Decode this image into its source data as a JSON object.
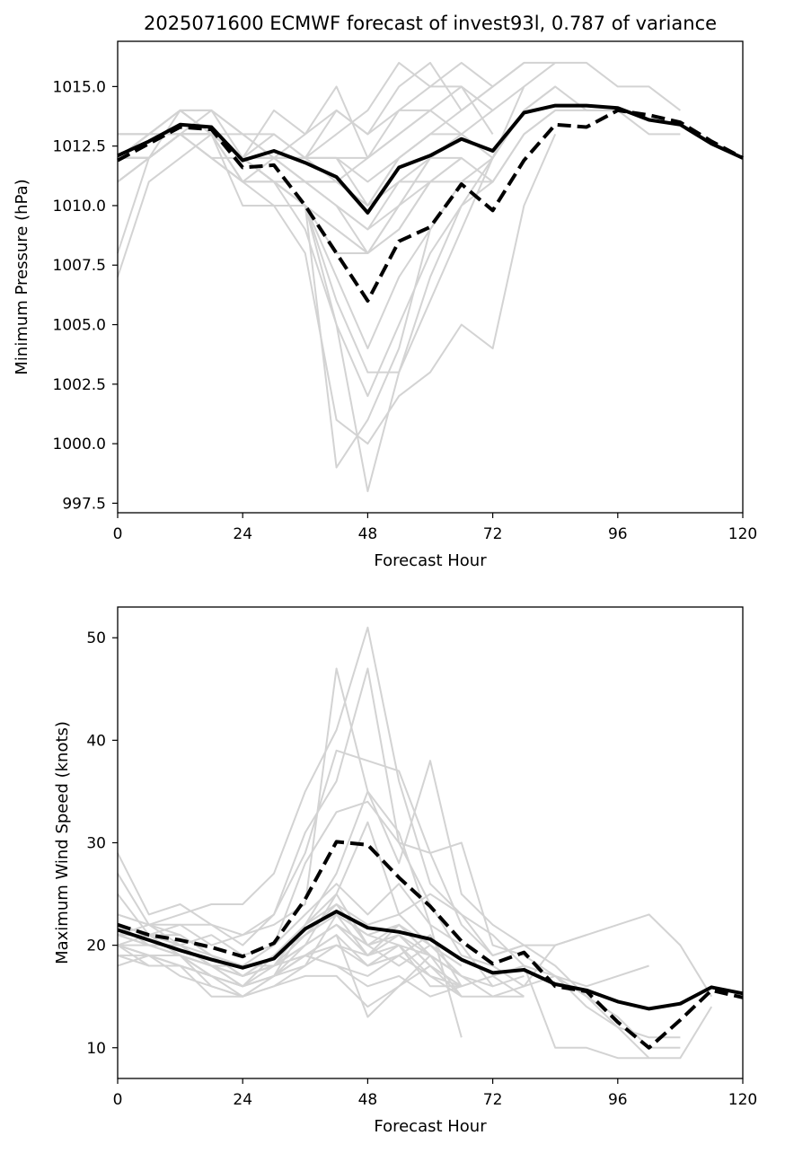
{
  "figure": {
    "title": "2025071600 ECMWF forecast of invest93l, 0.787 of variance"
  },
  "chart_data": [
    {
      "type": "line",
      "id": "pressure",
      "title": "2025071600 ECMWF forecast of invest93l, 0.787 of variance",
      "xlabel": "Forecast Hour",
      "ylabel": "Minimum Pressure (hPa)",
      "xlim": [
        0,
        120
      ],
      "ylim": [
        997.1,
        1016.9
      ],
      "xticks": [
        0,
        24,
        48,
        72,
        96,
        120
      ],
      "xtick_labels": [
        "0",
        "24",
        "48",
        "72",
        "96",
        "120"
      ],
      "yticks": [
        997.5,
        1000.0,
        1002.5,
        1005.0,
        1007.5,
        1010.0,
        1012.5,
        1015.0
      ],
      "ytick_labels": [
        "997.5",
        "1000.0",
        "1002.5",
        "1005.0",
        "1007.5",
        "1010.0",
        "1012.5",
        "1015.0"
      ],
      "grid": false,
      "x": [
        0,
        6,
        12,
        18,
        24,
        30,
        36,
        42,
        48,
        54,
        60,
        66,
        72,
        78,
        84,
        90,
        96,
        102,
        108,
        114,
        120
      ],
      "series": [
        {
          "role": "mean",
          "style": "solid",
          "color": "#000000",
          "values": [
            1012.1,
            1012.7,
            1013.4,
            1013.3,
            1011.9,
            1012.3,
            1011.8,
            1011.2,
            1009.7,
            1011.6,
            1012.1,
            1012.8,
            1012.3,
            1013.9,
            1014.2,
            1014.2,
            1014.1,
            1013.6,
            1013.4,
            1012.6,
            1012.0
          ]
        },
        {
          "role": "highlight",
          "style": "dashed",
          "color": "#000000",
          "values": [
            1011.9,
            1012.6,
            1013.3,
            1013.2,
            1011.6,
            1011.7,
            1010.0,
            1008.0,
            1006.0,
            1008.5,
            1009.1,
            1010.9,
            1009.8,
            1011.9,
            1013.4,
            1013.3,
            1014.0,
            1013.8,
            1013.5,
            1012.7,
            1012.0
          ]
        }
      ],
      "members": [
        [
          1013,
          1013,
          1014,
          1014,
          1013,
          1013,
          1012,
          1012,
          1010,
          1012,
          1013,
          1014,
          1015,
          1016,
          1016,
          1016,
          1015,
          1015,
          1014
        ],
        [
          1012,
          1013,
          1014,
          1013,
          1012,
          1012,
          1011,
          1010,
          1008,
          1010,
          1012,
          1013,
          1012,
          1014,
          1015,
          1014,
          1014,
          1013,
          1013
        ],
        [
          1011,
          1012,
          1013,
          1013,
          1012,
          1011,
          1010,
          1007,
          1004,
          1007,
          1009,
          1011,
          1011,
          1013,
          1014,
          1014,
          1014
        ],
        [
          1012,
          1013,
          1013,
          1014,
          1012,
          1011,
          1009,
          1005,
          1002,
          1005,
          1008,
          1010,
          1011,
          1013,
          1014
        ],
        [
          1008,
          1012,
          1013,
          1013,
          1011,
          1011,
          1010,
          1005,
          998,
          1003,
          1007,
          1010,
          1012,
          1014,
          1015
        ],
        [
          1007,
          1011,
          1012,
          1013,
          1010,
          1010,
          1008,
          1001,
          1000,
          1002,
          1003,
          1005,
          1004,
          1010,
          1013
        ],
        [
          1012,
          1013,
          1014,
          1013,
          1012,
          1013,
          1012,
          1011,
          1012,
          1013,
          1014,
          1015,
          1014,
          1015,
          1016
        ],
        [
          1013,
          1013,
          1014,
          1014,
          1013,
          1012,
          1012,
          1013,
          1014,
          1016,
          1015,
          1016,
          1015,
          1016
        ],
        [
          1012,
          1012,
          1013,
          1013,
          1011,
          1011,
          1010,
          1006,
          1003,
          1003,
          1006,
          1009,
          1012,
          1015
        ],
        [
          1011,
          1012,
          1013,
          1012,
          1011,
          1012,
          1012,
          1014,
          1013,
          1015,
          1016,
          1014,
          1015
        ],
        [
          1012,
          1012,
          1013,
          1012,
          1012,
          1014,
          1013,
          1015,
          1012,
          1014,
          1015,
          1015,
          1013
        ],
        [
          1012,
          1012,
          1013,
          1013,
          1012,
          1011,
          1010,
          999,
          1001,
          1004,
          1009,
          1011,
          1012
        ],
        [
          1012,
          1013,
          1013,
          1013,
          1013,
          1012,
          1013,
          1014,
          1013,
          1014,
          1014,
          1013,
          1014
        ],
        [
          1011,
          1012,
          1014,
          1013,
          1012,
          1011,
          1010,
          1009,
          1008,
          1009,
          1011,
          1012,
          1011
        ],
        [
          1012,
          1013,
          1013,
          1013,
          1012,
          1012,
          1011,
          1010,
          1009,
          1010,
          1012,
          1012
        ],
        [
          1012,
          1012,
          1013,
          1013,
          1011,
          1011,
          1010,
          1008,
          1008,
          1009,
          1011,
          1012
        ],
        [
          1013,
          1013,
          1013,
          1012,
          1011,
          1010,
          1010,
          1009,
          1008,
          1010,
          1011,
          1011
        ],
        [
          1012,
          1012,
          1013,
          1013,
          1012,
          1012,
          1012,
          1012,
          1011,
          1012,
          1013,
          1013
        ],
        [
          1012,
          1012,
          1013,
          1012,
          1011,
          1011,
          1011,
          1010,
          1009,
          1011,
          1011
        ],
        [
          1013,
          1013,
          1013,
          1013,
          1012,
          1012,
          1012,
          1012,
          1012,
          1013,
          1014
        ],
        [
          1012,
          1012,
          1013,
          1013,
          1012,
          1011,
          1011,
          1011,
          1010,
          1011,
          1012
        ],
        [
          1012,
          1012,
          1013,
          1013,
          1012,
          1012,
          1011,
          1011,
          1010,
          1012,
          1013
        ]
      ]
    },
    {
      "type": "line",
      "id": "wind",
      "title": "",
      "xlabel": "Forecast Hour",
      "ylabel": "Maximum Wind Speed (knots)",
      "xlim": [
        0,
        120
      ],
      "ylim": [
        7,
        53
      ],
      "xticks": [
        0,
        24,
        48,
        72,
        96,
        120
      ],
      "xtick_labels": [
        "0",
        "24",
        "48",
        "72",
        "96",
        "120"
      ],
      "yticks": [
        10,
        20,
        30,
        40,
        50
      ],
      "ytick_labels": [
        "10",
        "20",
        "30",
        "40",
        "50"
      ],
      "grid": false,
      "x": [
        0,
        6,
        12,
        18,
        24,
        30,
        36,
        42,
        48,
        54,
        60,
        66,
        72,
        78,
        84,
        90,
        96,
        102,
        108,
        114,
        120
      ],
      "series": [
        {
          "role": "mean",
          "style": "solid",
          "color": "#000000",
          "values": [
            21.5,
            20.5,
            19.5,
            18.6,
            17.8,
            18.7,
            21.6,
            23.3,
            21.7,
            21.3,
            20.6,
            18.6,
            17.3,
            17.6,
            16.2,
            15.6,
            14.5,
            13.8,
            14.3,
            15.9,
            15.3
          ]
        },
        {
          "role": "highlight",
          "style": "dashed",
          "color": "#000000",
          "values": [
            22.0,
            21.0,
            20.5,
            19.8,
            18.9,
            20.2,
            24.5,
            30.1,
            29.8,
            26.6,
            23.8,
            20.4,
            18.2,
            19.3,
            16.0,
            15.5,
            12.5,
            10.0,
            12.7,
            15.6,
            14.9
          ]
        }
      ],
      "members": [
        [
          29,
          23,
          24,
          22,
          21,
          22,
          24,
          47,
          35,
          31,
          22,
          20,
          16,
          17
        ],
        [
          27,
          22,
          23,
          24,
          24,
          27,
          35,
          41,
          51,
          36,
          26,
          23,
          19,
          20
        ],
        [
          25,
          21,
          22,
          22,
          20,
          23,
          31,
          36,
          47,
          30,
          24,
          19,
          18,
          16,
          20,
          21
        ],
        [
          23,
          22,
          22,
          20,
          21,
          23,
          29,
          39,
          38,
          37,
          29,
          22,
          19,
          20,
          20,
          21,
          22,
          23,
          20,
          15
        ],
        [
          22,
          20,
          20,
          21,
          19,
          20,
          28,
          33,
          34,
          30,
          29,
          30,
          20,
          19,
          17,
          16,
          17,
          18
        ],
        [
          21,
          21,
          21,
          19,
          17,
          18,
          22,
          27,
          35,
          28,
          38,
          25,
          22,
          20,
          18,
          15,
          13,
          10,
          10
        ],
        [
          20,
          19,
          19,
          18,
          18,
          18,
          20,
          25,
          32,
          23,
          25,
          23,
          21,
          18,
          17,
          15,
          12,
          11,
          11
        ],
        [
          20,
          18,
          18,
          17,
          16,
          17,
          22,
          25,
          20,
          18,
          20,
          17,
          15,
          16,
          17,
          14,
          12,
          9,
          9,
          14
        ],
        [
          19,
          19,
          17,
          16,
          15,
          17,
          19,
          18,
          16,
          17,
          15,
          16,
          17,
          18,
          10,
          10,
          9,
          9
        ],
        [
          18,
          19,
          18,
          15,
          15,
          16,
          18,
          23,
          19,
          22,
          19,
          15,
          15,
          15
        ],
        [
          21,
          20,
          19,
          17,
          16,
          17,
          20,
          22,
          20,
          21,
          18,
          16,
          17,
          15
        ],
        [
          22,
          21,
          19,
          18,
          16,
          18,
          21,
          23,
          21,
          20,
          19,
          17,
          16
        ],
        [
          20,
          19,
          18,
          17,
          15,
          17,
          19,
          20,
          18,
          19,
          17,
          15
        ],
        [
          21,
          20,
          20,
          18,
          17,
          18,
          20,
          22,
          19,
          21,
          18,
          16
        ],
        [
          22,
          21,
          19,
          17,
          16,
          19,
          22,
          24,
          20,
          22,
          19,
          17
        ],
        [
          19,
          18,
          18,
          17,
          16,
          17,
          19,
          21,
          13,
          16,
          18,
          15
        ],
        [
          20,
          19,
          19,
          16,
          15,
          16,
          17,
          17,
          14,
          16,
          19,
          17
        ],
        [
          22,
          21,
          20,
          18,
          17,
          19,
          21,
          23,
          21,
          22,
          20,
          18
        ],
        [
          21,
          20,
          19,
          18,
          17,
          18,
          20,
          22,
          20,
          21,
          19,
          17
        ],
        [
          20,
          20,
          19,
          17,
          16,
          17,
          18,
          20,
          19,
          20,
          17,
          16
        ],
        [
          23,
          22,
          20,
          19,
          17,
          19,
          21,
          24,
          22,
          23,
          20,
          18
        ],
        [
          21,
          22,
          21,
          19,
          18,
          20,
          23,
          26,
          23,
          26,
          22,
          11
        ],
        [
          22,
          21,
          20,
          18,
          17,
          18,
          19,
          18,
          17,
          19,
          21,
          16
        ],
        [
          20,
          21,
          20,
          18,
          16,
          17,
          19,
          21,
          18,
          20,
          16,
          16
        ]
      ]
    }
  ]
}
